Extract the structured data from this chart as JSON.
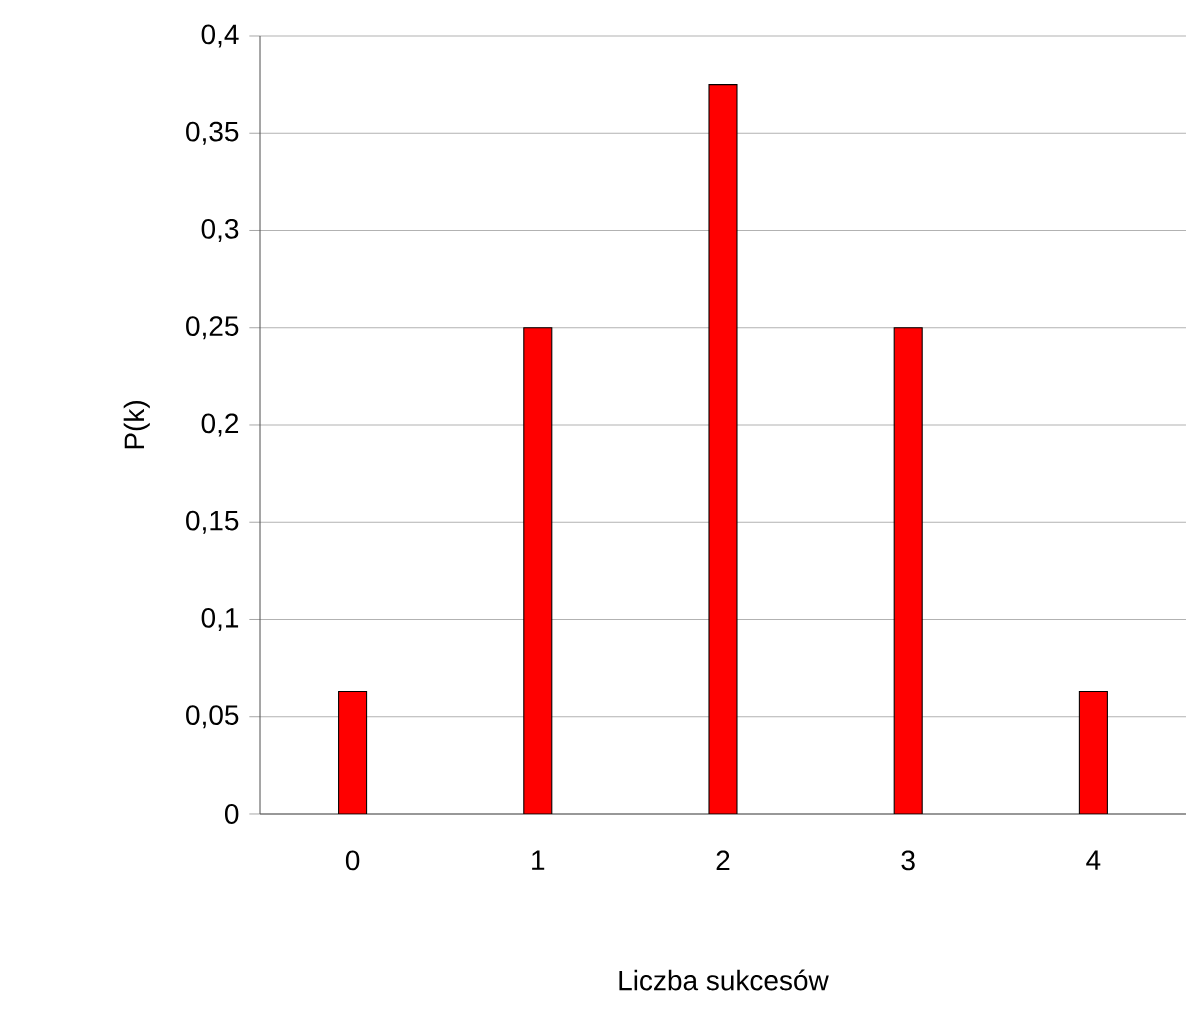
{
  "chart_data": {
    "type": "bar",
    "xlabel": "Liczba sukcesów",
    "ylabel": "P(k)",
    "categories": [
      "0",
      "1",
      "2",
      "3",
      "4"
    ],
    "values": [
      0.063,
      0.25,
      0.375,
      0.25,
      0.063
    ],
    "color": "#ff0000",
    "ylim": [
      0,
      0.4
    ],
    "yticks": [
      0,
      {
        "value": 0.05,
        "label": "0,05"
      },
      {
        "value": 0.1,
        "label": "0,1"
      },
      {
        "value": 0.15,
        "label": "0,15"
      },
      {
        "value": 0.2,
        "label": "0,2"
      },
      {
        "value": 0.25,
        "label": "0,25"
      },
      {
        "value": 0.3,
        "label": "0,3"
      },
      {
        "value": 0.35,
        "label": "0,35"
      },
      {
        "value": 0.4,
        "label": "0,4"
      }
    ],
    "grid": "y"
  }
}
